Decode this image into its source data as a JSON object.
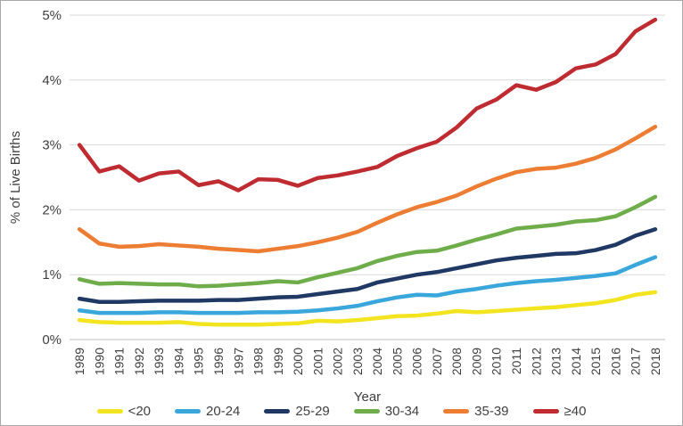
{
  "chart_data": {
    "type": "line",
    "title": "",
    "xlabel": "Year",
    "ylabel": "% of Live Births",
    "ylim": [
      0,
      5
    ],
    "y_ticks": [
      "0%",
      "1%",
      "2%",
      "3%",
      "4%",
      "5%"
    ],
    "grid": "horizontal",
    "legend_position": "bottom",
    "grid_color": "#d9d9d9",
    "axis_line_color": "#bfbfbf",
    "text_color": "#404040",
    "categories": [
      "1989",
      "1990",
      "1991",
      "1992",
      "1993",
      "1994",
      "1995",
      "1996",
      "1997",
      "1998",
      "1999",
      "2000",
      "2001",
      "2002",
      "2003",
      "2004",
      "2005",
      "2006",
      "2007",
      "2008",
      "2009",
      "2010",
      "2011",
      "2012",
      "2013",
      "2014",
      "2015",
      "2016",
      "2017",
      "2018"
    ],
    "series": [
      {
        "key": "under-20",
        "name": "<20",
        "color": "#f2e41f",
        "values": [
          0.3,
          0.27,
          0.26,
          0.26,
          0.26,
          0.27,
          0.24,
          0.23,
          0.23,
          0.23,
          0.24,
          0.25,
          0.29,
          0.28,
          0.3,
          0.33,
          0.36,
          0.37,
          0.4,
          0.44,
          0.42,
          0.44,
          0.46,
          0.48,
          0.5,
          0.53,
          0.56,
          0.61,
          0.69,
          0.73
        ]
      },
      {
        "key": "20-24",
        "name": "20-24",
        "color": "#3aa7dc",
        "values": [
          0.45,
          0.41,
          0.41,
          0.41,
          0.42,
          0.42,
          0.41,
          0.41,
          0.41,
          0.42,
          0.42,
          0.43,
          0.45,
          0.48,
          0.52,
          0.59,
          0.65,
          0.69,
          0.68,
          0.74,
          0.78,
          0.83,
          0.87,
          0.9,
          0.92,
          0.95,
          0.98,
          1.02,
          1.15,
          1.27
        ]
      },
      {
        "key": "25-29",
        "name": "25-29",
        "color": "#1f3864",
        "values": [
          0.63,
          0.58,
          0.58,
          0.59,
          0.6,
          0.6,
          0.6,
          0.61,
          0.61,
          0.63,
          0.65,
          0.66,
          0.7,
          0.74,
          0.78,
          0.88,
          0.94,
          1.0,
          1.04,
          1.1,
          1.16,
          1.22,
          1.26,
          1.29,
          1.32,
          1.33,
          1.38,
          1.46,
          1.6,
          1.7
        ]
      },
      {
        "key": "30-34",
        "name": "30-34",
        "color": "#6ead4a",
        "values": [
          0.93,
          0.86,
          0.87,
          0.86,
          0.85,
          0.85,
          0.82,
          0.83,
          0.85,
          0.87,
          0.9,
          0.88,
          0.96,
          1.03,
          1.1,
          1.21,
          1.29,
          1.35,
          1.37,
          1.45,
          1.54,
          1.62,
          1.71,
          1.74,
          1.77,
          1.82,
          1.84,
          1.9,
          2.04,
          2.2
        ]
      },
      {
        "key": "35-39",
        "name": "35-39",
        "color": "#ec7d33",
        "values": [
          1.7,
          1.48,
          1.43,
          1.44,
          1.47,
          1.45,
          1.43,
          1.4,
          1.38,
          1.36,
          1.4,
          1.44,
          1.5,
          1.57,
          1.66,
          1.8,
          1.93,
          2.04,
          2.12,
          2.22,
          2.36,
          2.48,
          2.58,
          2.63,
          2.65,
          2.71,
          2.8,
          2.93,
          3.1,
          3.28
        ]
      },
      {
        "key": "40-plus",
        "name": "≥40",
        "color": "#be2c31",
        "values": [
          3.0,
          2.59,
          2.67,
          2.45,
          2.56,
          2.59,
          2.38,
          2.44,
          2.3,
          2.47,
          2.46,
          2.37,
          2.49,
          2.53,
          2.59,
          2.66,
          2.83,
          2.95,
          3.05,
          3.27,
          3.56,
          3.7,
          3.92,
          3.85,
          3.97,
          4.18,
          4.24,
          4.4,
          4.75,
          4.93
        ]
      }
    ]
  }
}
